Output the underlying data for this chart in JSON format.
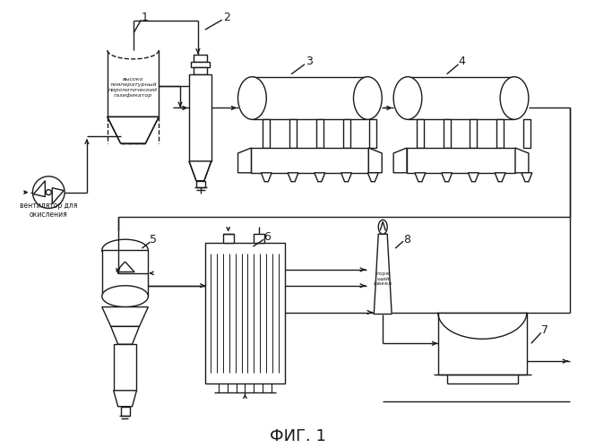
{
  "bg_color": "#ffffff",
  "lc": "#1a1a1a",
  "lw": 1.0,
  "label_fan": "вентилятор для\nокисления",
  "label_gasifier": "высоко\nтемпературный\nпиролитический\nгазификатор",
  "label_flare": "горя\nщий\nфакел",
  "fig_label": "ФИГ. 1"
}
